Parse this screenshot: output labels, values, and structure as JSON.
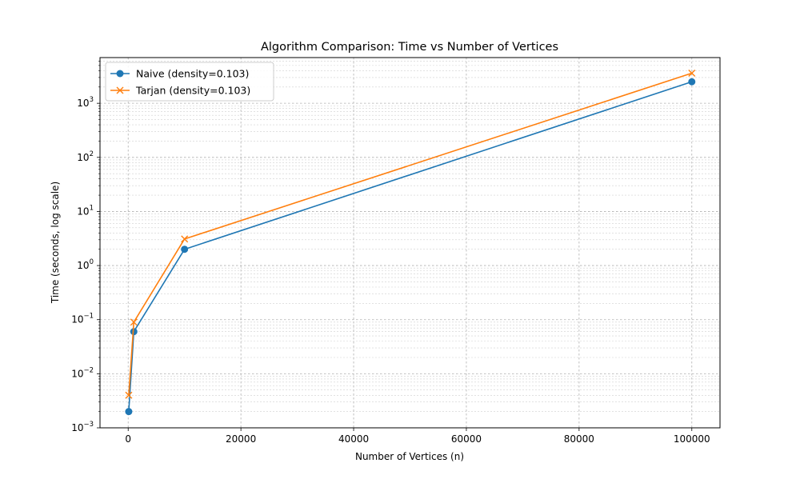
{
  "chart_data": {
    "type": "line",
    "title": "Algorithm Comparison: Time vs Number of Vertices",
    "xlabel": "Number of Vertices (n)",
    "ylabel": "Time (seconds, log scale)",
    "xlim": [
      -5000,
      105000
    ],
    "ylim": [
      0.001,
      7000
    ],
    "yscale": "log",
    "grid": true,
    "legend_position": "top-left",
    "x_ticks": [
      0,
      20000,
      40000,
      60000,
      80000,
      100000
    ],
    "x_tick_labels": [
      "0",
      "20000",
      "40000",
      "60000",
      "80000",
      "100000"
    ],
    "y_ticks": [
      0.001,
      0.01,
      0.1,
      1,
      10,
      100,
      1000
    ],
    "y_tick_mantissa": [
      "10",
      "10",
      "10",
      "10",
      "10",
      "10",
      "10"
    ],
    "y_tick_exponents": [
      "−3",
      "−2",
      "−1",
      "0",
      "1",
      "2",
      "3"
    ],
    "series": [
      {
        "name": "Naive (density=0.103)",
        "color": "#1f77b4",
        "marker": "circle",
        "x": [
          100,
          1000,
          10000,
          100000
        ],
        "y": [
          0.002,
          0.06,
          2.0,
          2500
        ]
      },
      {
        "name": "Tarjan (density=0.103)",
        "color": "#ff7f0e",
        "marker": "x",
        "x": [
          100,
          1000,
          10000,
          100000
        ],
        "y": [
          0.004,
          0.09,
          3.1,
          3600
        ]
      }
    ]
  }
}
